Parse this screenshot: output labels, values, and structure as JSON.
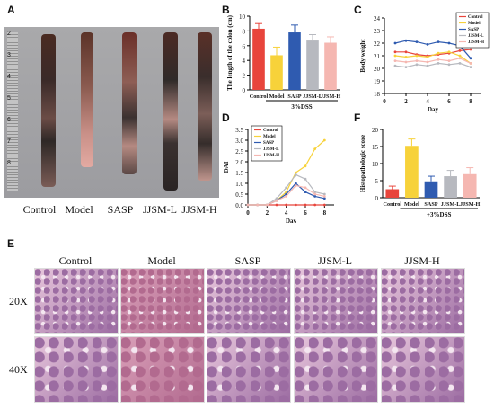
{
  "panels": {
    "A": "A",
    "B": "B",
    "C": "C",
    "D": "D",
    "E": "E",
    "F": "F"
  },
  "groups": [
    "Control",
    "Model",
    "SASP",
    "JJSM-L",
    "JJSM-H"
  ],
  "ruler_marks": [
    "2",
    "3",
    "4",
    "5",
    "6",
    "7",
    "8"
  ],
  "colors": {
    "control": "#e8453c",
    "model": "#f7d23a",
    "sasp": "#2f5bb0",
    "jjsm_l": "#b7b9bf",
    "jjsm_h": "#f5b7b1"
  },
  "panelE": {
    "columns": [
      "Control",
      "Model",
      "SASP",
      "JJSM-L",
      "JJSM-H"
    ],
    "rows": [
      "20X",
      "40X"
    ]
  },
  "chart_data": [
    {
      "panel": "B",
      "type": "bar",
      "categories": [
        "Control",
        "Model",
        "SASP",
        "JJSM-L",
        "JJSM-H"
      ],
      "values": [
        8.3,
        4.7,
        7.8,
        6.7,
        6.4
      ],
      "errors": [
        0.7,
        1.1,
        1.0,
        0.8,
        0.8
      ],
      "ylabel": "The length of the colon (cm)",
      "ylim": [
        0,
        10
      ],
      "yticks": [
        "0",
        "2",
        "4",
        "6",
        "8",
        "10"
      ],
      "group_label": "3%DSS"
    },
    {
      "panel": "C",
      "type": "line",
      "x": [
        1,
        2,
        3,
        4,
        5,
        6,
        7,
        8
      ],
      "xticks": [
        "0",
        "2",
        "4",
        "6",
        "8"
      ],
      "xlabel": "Day",
      "ylabel": "Body weight",
      "ylim": [
        18,
        24
      ],
      "yticks": [
        "18",
        "19",
        "20",
        "21",
        "22",
        "23",
        "24"
      ],
      "series": [
        {
          "name": "Control",
          "values": [
            21.3,
            21.3,
            21.1,
            21.0,
            21.1,
            21.2,
            21.4,
            21.5
          ]
        },
        {
          "name": "Model",
          "values": [
            21.0,
            20.9,
            21.0,
            20.9,
            21.2,
            21.3,
            21.0,
            20.4
          ]
        },
        {
          "name": "SASP",
          "values": [
            22.0,
            22.2,
            22.1,
            21.9,
            22.1,
            22.0,
            21.8,
            20.8
          ]
        },
        {
          "name": "JJSM-L",
          "values": [
            20.2,
            20.1,
            20.3,
            20.2,
            20.4,
            20.3,
            20.4,
            20.1
          ]
        },
        {
          "name": "JJSM-H",
          "values": [
            20.6,
            20.5,
            20.6,
            20.5,
            20.7,
            20.6,
            20.8,
            20.4
          ]
        }
      ]
    },
    {
      "panel": "D",
      "type": "line",
      "x": [
        0,
        1,
        2,
        3,
        4,
        5,
        6,
        7,
        8
      ],
      "xticks": [
        "0",
        "2",
        "4",
        "6",
        "8"
      ],
      "xlabel": "Day",
      "ylabel": "DAI",
      "ylim": [
        0,
        3.5
      ],
      "yticks": [
        "0.0",
        "0.5",
        "1.0",
        "1.5",
        "2.0",
        "2.5",
        "3.0",
        "3.5"
      ],
      "series": [
        {
          "name": "Control",
          "values": [
            0,
            0,
            0,
            0,
            0,
            0,
            0,
            0,
            0
          ]
        },
        {
          "name": "Model",
          "values": [
            0,
            0,
            0,
            0.2,
            0.6,
            1.5,
            1.8,
            2.6,
            3.0
          ]
        },
        {
          "name": "SASP",
          "values": [
            0,
            0,
            0,
            0.2,
            0.5,
            1.0,
            0.6,
            0.4,
            0.3
          ]
        },
        {
          "name": "JJSM-L",
          "values": [
            0,
            0,
            0,
            0.3,
            0.8,
            1.4,
            1.2,
            0.6,
            0.5
          ]
        },
        {
          "name": "JJSM-H",
          "values": [
            0,
            0,
            0,
            0.2,
            0.4,
            0.9,
            0.8,
            0.5,
            0.4
          ]
        }
      ]
    },
    {
      "panel": "F",
      "type": "bar",
      "categories": [
        "Control",
        "Model",
        "SASP",
        "JJSM-L",
        "JJSM-H"
      ],
      "values": [
        2.5,
        15.2,
        4.8,
        6.3,
        6.9
      ],
      "errors": [
        0.9,
        2.0,
        1.5,
        1.7,
        1.9
      ],
      "ylabel": "Histopathologic score",
      "ylim": [
        0,
        20
      ],
      "yticks": [
        "0",
        "5",
        "10",
        "15",
        "20"
      ],
      "group_label": "+3%DSS"
    }
  ]
}
